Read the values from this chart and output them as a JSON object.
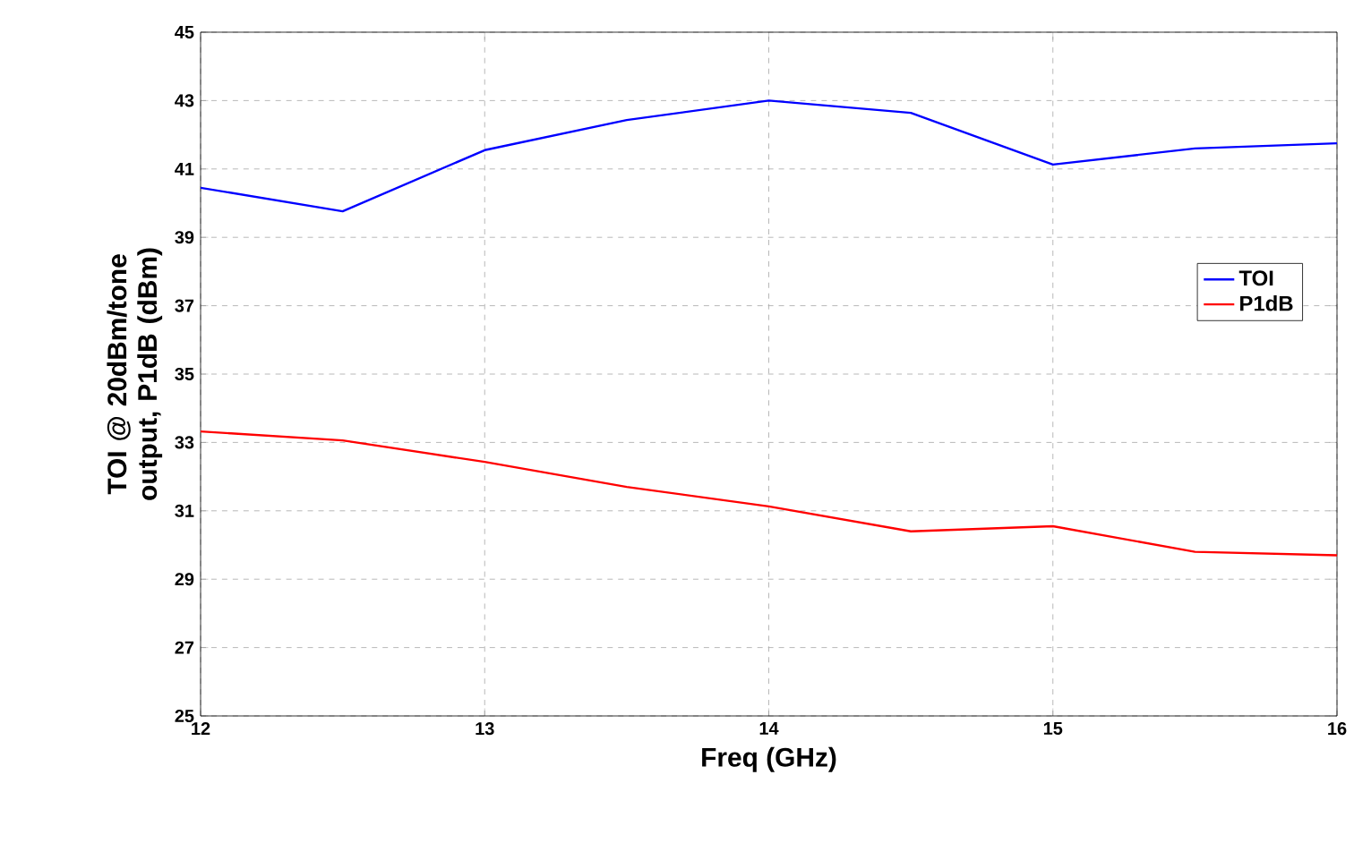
{
  "chart_data": {
    "type": "line",
    "xlabel": "Freq (GHz)",
    "ylabel": "TOI @ 20dBm/tone output, P1dB (dBm)",
    "x": [
      12,
      12.5,
      13,
      13.5,
      14,
      14.5,
      15,
      15.5,
      16
    ],
    "series": [
      {
        "name": "TOI",
        "color": "#0000ff",
        "values": [
          40.45,
          39.76,
          41.55,
          42.43,
          43.0,
          42.64,
          41.13,
          41.6,
          41.75
        ]
      },
      {
        "name": "P1dB",
        "color": "#ff0000",
        "values": [
          33.32,
          33.06,
          32.43,
          31.7,
          31.13,
          30.4,
          30.55,
          29.8,
          29.7
        ]
      }
    ],
    "xlim": [
      12,
      16
    ],
    "xticks": [
      12,
      13,
      14,
      15,
      16
    ],
    "ylim": [
      25,
      45
    ],
    "yticks": [
      25,
      27,
      29,
      31,
      33,
      35,
      37,
      39,
      41,
      43,
      45
    ],
    "grid": true,
    "legend": "right",
    "marker": "none",
    "line_style": "solid"
  }
}
